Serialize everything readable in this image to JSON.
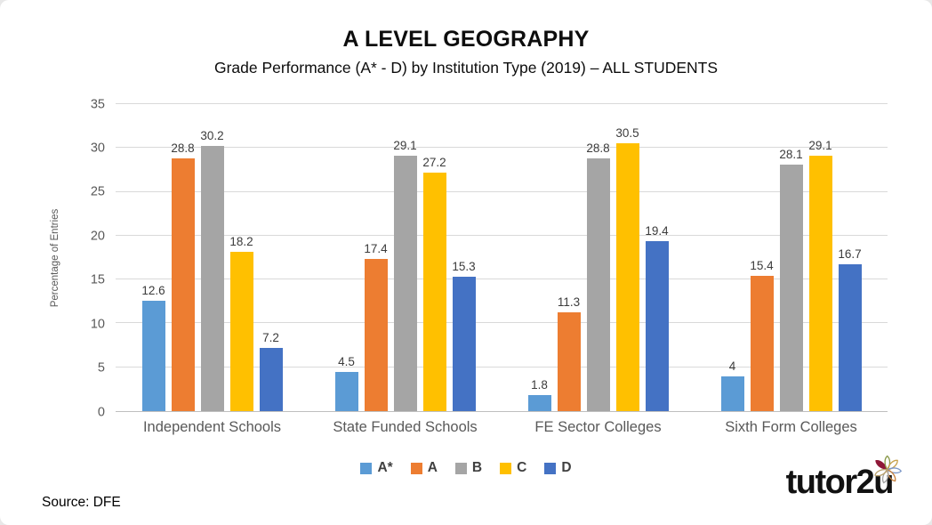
{
  "title": "A LEVEL GEOGRAPHY",
  "subtitle": "Grade Performance (A* - D) by Institution Type (2019) – ALL STUDENTS",
  "source": "Source: DFE",
  "logo": {
    "text_regular": "tutor",
    "text_bold": "2u",
    "flower_solid_color": "#8f1838"
  },
  "chart_data": {
    "type": "bar",
    "title": "A LEVEL GEOGRAPHY",
    "subtitle": "Grade Performance (A* - D) by Institution Type (2019) – ALL STUDENTS",
    "xlabel": "",
    "ylabel": "Percentage of Entries",
    "ylim": [
      0,
      35
    ],
    "ytick_step": 5,
    "grid": true,
    "legend_position": "bottom",
    "categories": [
      "Independent Schools",
      "State Funded Schools",
      "FE Sector Colleges",
      "Sixth Form Colleges"
    ],
    "series": [
      {
        "name": "A*",
        "color": "#5B9BD5",
        "values": [
          12.6,
          4.5,
          1.8,
          4
        ]
      },
      {
        "name": "A",
        "color": "#ED7D31",
        "values": [
          28.8,
          17.4,
          11.3,
          15.4
        ]
      },
      {
        "name": "B",
        "color": "#A5A5A5",
        "values": [
          30.2,
          29.1,
          28.8,
          28.1
        ]
      },
      {
        "name": "C",
        "color": "#FFC000",
        "values": [
          18.2,
          27.2,
          30.5,
          29.1
        ]
      },
      {
        "name": "D",
        "color": "#4472C4",
        "values": [
          7.2,
          15.3,
          19.4,
          16.7
        ]
      }
    ],
    "gridline_color": "#D9D9D9",
    "axis_line_color": "#BFBFBF"
  }
}
